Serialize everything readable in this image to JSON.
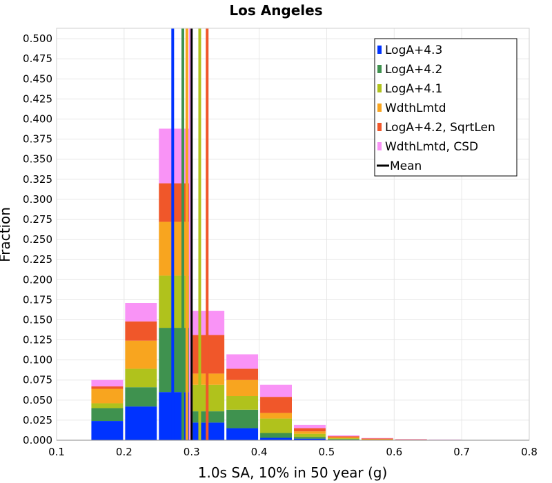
{
  "chart_data": {
    "type": "bar",
    "stacked": true,
    "title": "Los Angeles",
    "xlabel": "1.0s SA, 10% in 50 year (g)",
    "ylabel": "Fraction",
    "xlim": [
      0.1,
      0.8
    ],
    "ylim": [
      0,
      0.513
    ],
    "x_ticks": [
      "0.1",
      "0.2",
      "0.3",
      "0.4",
      "0.5",
      "0.6",
      "0.7",
      "0.8"
    ],
    "y_ticks": [
      "0.000",
      "0.025",
      "0.050",
      "0.075",
      "0.100",
      "0.125",
      "0.150",
      "0.175",
      "0.200",
      "0.225",
      "0.250",
      "0.275",
      "0.300",
      "0.325",
      "0.350",
      "0.375",
      "0.400",
      "0.425",
      "0.450",
      "0.475",
      "0.500"
    ],
    "bin_width": 0.05,
    "bin_starts": [
      0.15,
      0.2,
      0.25,
      0.3,
      0.35,
      0.4,
      0.45,
      0.5,
      0.55,
      0.6,
      0.65,
      0.7,
      0.75
    ],
    "grid": true,
    "legend_position": "top-right",
    "series": [
      {
        "name": "LogA+4.3",
        "color": "#0033ff",
        "values": [
          0.024,
          0.042,
          0.06,
          0.022,
          0.015,
          0.003,
          0.002,
          0.0005,
          0,
          0,
          0,
          0,
          0
        ],
        "mean": 0.272
      },
      {
        "name": "LogA+4.2",
        "color": "#3f924f",
        "values": [
          0.016,
          0.024,
          0.08,
          0.014,
          0.023,
          0.006,
          0.002,
          0.001,
          0.0003,
          0,
          0,
          0,
          0
        ],
        "mean": 0.287
      },
      {
        "name": "LogA+4.1",
        "color": "#b0c21c",
        "values": [
          0.006,
          0.023,
          0.065,
          0.033,
          0.017,
          0.018,
          0.004,
          0.001,
          0.0004,
          0.0002,
          0,
          0,
          0
        ],
        "mean": 0.312
      },
      {
        "name": "WdthLmtd",
        "color": "#f8a51f",
        "values": [
          0.018,
          0.035,
          0.067,
          0.014,
          0.02,
          0.007,
          0.003,
          0.001,
          0.0006,
          0.0003,
          0.0002,
          0,
          0
        ],
        "mean": 0.293
      },
      {
        "name": "LogA+4.2, SqrtLen",
        "color": "#f0572a",
        "values": [
          0.003,
          0.024,
          0.048,
          0.048,
          0.014,
          0.02,
          0.004,
          0.0015,
          0.001,
          0.0006,
          0.0003,
          0.0001,
          0
        ],
        "mean": 0.323
      },
      {
        "name": "WdthLmtd, CSD",
        "color": "#f993f6",
        "values": [
          0.008,
          0.023,
          0.068,
          0.03,
          0.018,
          0.015,
          0.004,
          0.001,
          0.0005,
          0.0003,
          0.0002,
          0.0001,
          0
        ],
        "mean": 0.298
      }
    ],
    "mean_line": {
      "name": "Mean",
      "color": "#000000",
      "x": 0.3
    }
  }
}
